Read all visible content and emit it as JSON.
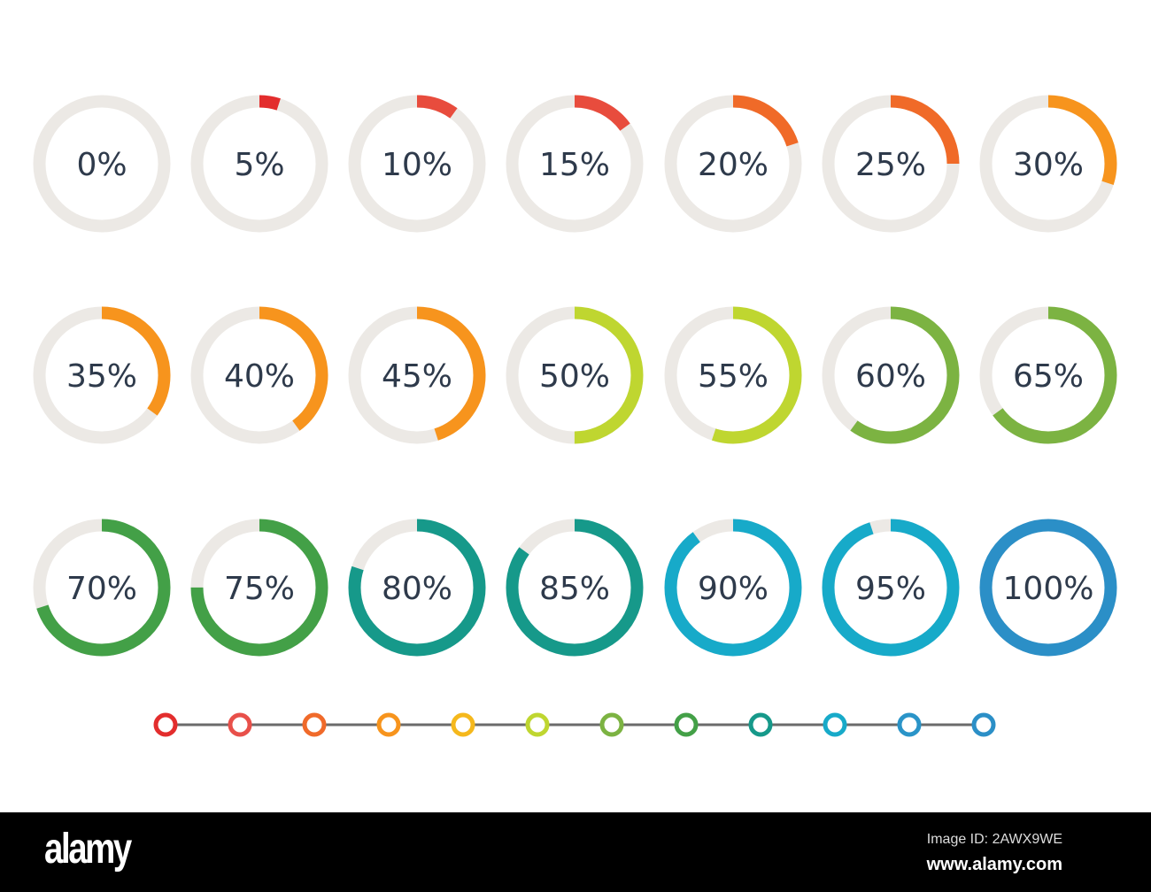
{
  "chart_data": {
    "type": "progress-rings",
    "track_color": "#ece9e5",
    "rings": [
      {
        "label": "0%",
        "value": 0,
        "color": "#e53935"
      },
      {
        "label": "5%",
        "value": 5,
        "color": "#e32d2d"
      },
      {
        "label": "10%",
        "value": 10,
        "color": "#e84c3d"
      },
      {
        "label": "15%",
        "value": 15,
        "color": "#e84c3d"
      },
      {
        "label": "20%",
        "value": 20,
        "color": "#f06a28"
      },
      {
        "label": "25%",
        "value": 25,
        "color": "#f06a28"
      },
      {
        "label": "30%",
        "value": 30,
        "color": "#f7941d"
      },
      {
        "label": "35%",
        "value": 35,
        "color": "#f7941d"
      },
      {
        "label": "40%",
        "value": 40,
        "color": "#f7941d"
      },
      {
        "label": "45%",
        "value": 45,
        "color": "#f7941d"
      },
      {
        "label": "50%",
        "value": 50,
        "color": "#bfd630"
      },
      {
        "label": "55%",
        "value": 55,
        "color": "#bfd630"
      },
      {
        "label": "60%",
        "value": 60,
        "color": "#7cb342"
      },
      {
        "label": "65%",
        "value": 65,
        "color": "#7cb342"
      },
      {
        "label": "70%",
        "value": 70,
        "color": "#43a047"
      },
      {
        "label": "75%",
        "value": 75,
        "color": "#43a047"
      },
      {
        "label": "80%",
        "value": 80,
        "color": "#16998a"
      },
      {
        "label": "85%",
        "value": 85,
        "color": "#16998a"
      },
      {
        "label": "90%",
        "value": 90,
        "color": "#17aac9"
      },
      {
        "label": "95%",
        "value": 95,
        "color": "#17aac9"
      },
      {
        "label": "100%",
        "value": 100,
        "color": "#2b8fc7"
      }
    ],
    "timeline_colors": [
      "#e32d2d",
      "#e8504a",
      "#f06a2a",
      "#f7941d",
      "#f5b81c",
      "#bfd630",
      "#7cb342",
      "#43a047",
      "#16998a",
      "#17aac9",
      "#2a94c8",
      "#2b8fc7"
    ]
  },
  "footer": {
    "logo": "alamy",
    "image_id": "Image ID: 2AWX9WE",
    "site": "www.alamy.com"
  }
}
